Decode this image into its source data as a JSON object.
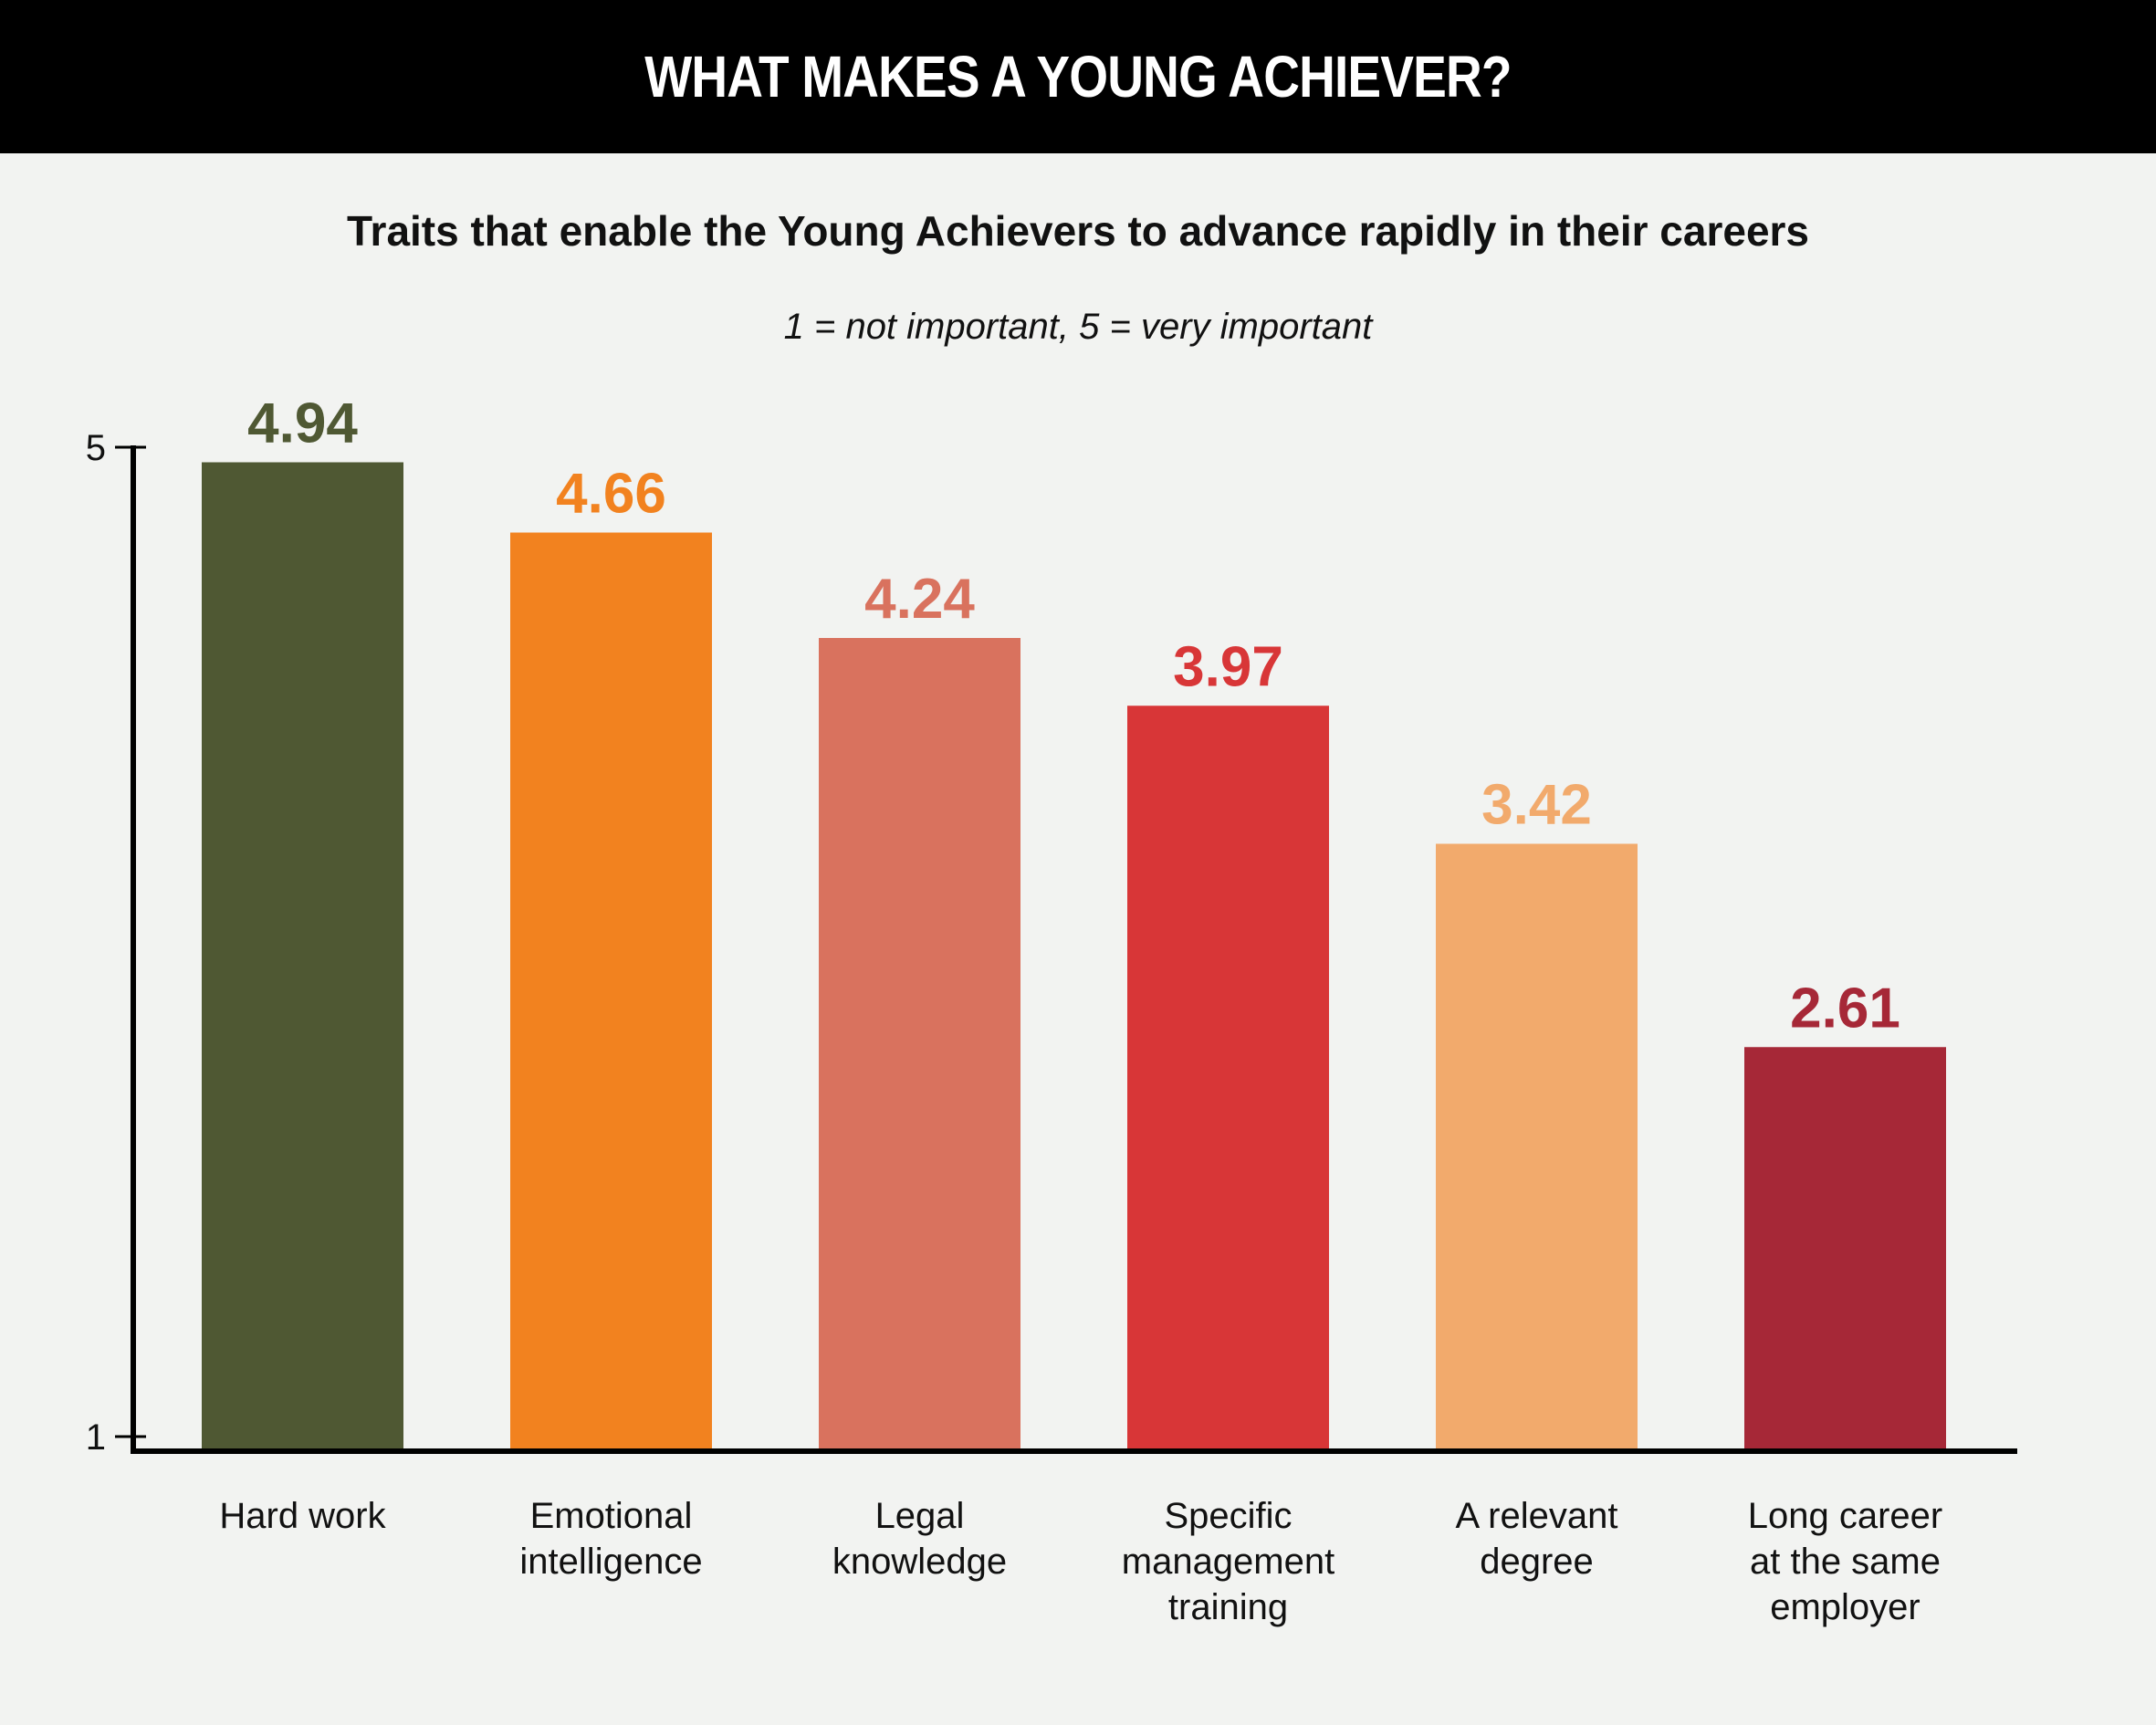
{
  "header": {
    "title": "WHAT MAKES A YOUNG ACHIEVER?"
  },
  "chart_data": {
    "type": "bar",
    "title": "WHAT MAKES A YOUNG ACHIEVER?",
    "subtitle": "Traits that enable the Young Achievers to advance rapidly in their careers",
    "annotation": "1 = not important, 5 = very important",
    "xlabel": "",
    "ylabel": "",
    "ylim": [
      1,
      5
    ],
    "yticks": [
      "1",
      "5"
    ],
    "grid": false,
    "categories": [
      [
        "Hard work"
      ],
      [
        "Emotional",
        "intelligence"
      ],
      [
        "Legal",
        "knowledge"
      ],
      [
        "Specific",
        "management",
        "training"
      ],
      [
        "A relevant",
        "degree"
      ],
      [
        "Long career",
        "at the same",
        "employer"
      ]
    ],
    "values": [
      4.94,
      4.66,
      4.24,
      3.97,
      3.42,
      2.61
    ],
    "value_labels": [
      "4.94",
      "4.66",
      "4.24",
      "3.97",
      "3.42",
      "2.61"
    ],
    "colors": [
      "#4f5833",
      "#f2821f",
      "#d9725e",
      "#d83637",
      "#f2aa6c",
      "#a62837"
    ],
    "label_colors": [
      "#4f5833",
      "#f2821f",
      "#d9725e",
      "#d83637",
      "#f2aa6c",
      "#a62837"
    ]
  }
}
